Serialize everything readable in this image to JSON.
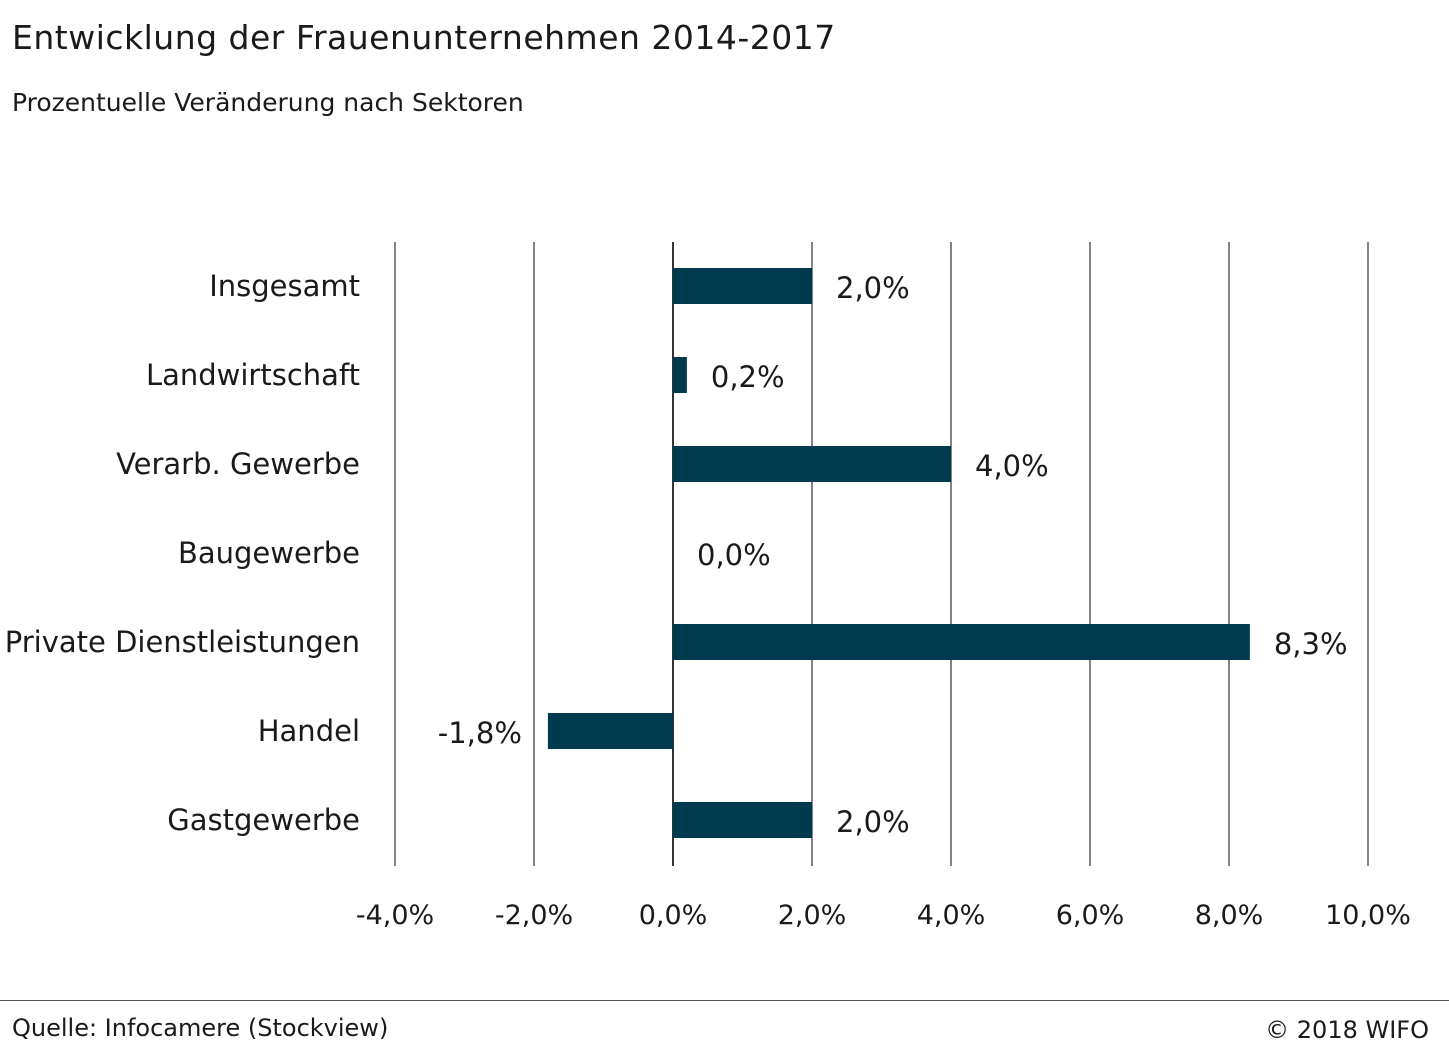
{
  "header": {
    "title": "Entwicklung der Frauenunternehmen 2014-2017",
    "subtitle": "Prozentuelle Veränderung nach Sektoren"
  },
  "footer": {
    "source": "Quelle: Infocamere (Stockview)",
    "copyright": "© 2018 WIFO"
  },
  "colors": {
    "bar": "#003a4f",
    "grid": "#333333",
    "text": "#1a1a1a"
  },
  "chart_data": {
    "type": "bar",
    "orientation": "horizontal",
    "categories": [
      "Insgesamt",
      "Landwirtschaft",
      "Verarb. Gewerbe",
      "Baugewerbe",
      "Private Dienstleistungen",
      "Handel",
      "Gastgewerbe"
    ],
    "values": [
      2.0,
      0.2,
      4.0,
      0.0,
      8.3,
      -1.8,
      2.0
    ],
    "value_labels": [
      "2,0%",
      "0,2%",
      "4,0%",
      "0,0%",
      "8,3%",
      "-1,8%",
      "2,0%"
    ],
    "xlim": [
      -4,
      10
    ],
    "xticks": [
      -4,
      -2,
      0,
      2,
      4,
      6,
      8,
      10
    ],
    "xtick_labels": [
      "-4,0%",
      "-2,0%",
      "0,0%",
      "2,0%",
      "4,0%",
      "6,0%",
      "8,0%",
      "10,0%"
    ],
    "grid": "vertical"
  }
}
